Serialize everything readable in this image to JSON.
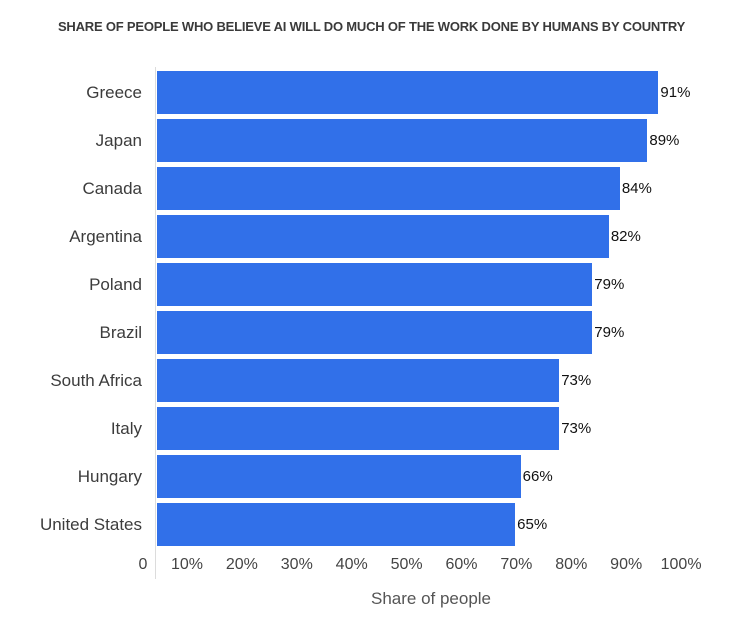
{
  "chart_data": {
    "type": "bar",
    "orientation": "horizontal",
    "title": "SHARE OF PEOPLE WHO BELIEVE AI WILL DO MUCH OF THE WORK DONE BY HUMANS BY COUNTRY",
    "xlabel": "Share of people",
    "ylabel": "",
    "categories": [
      "Greece",
      "Japan",
      "Canada",
      "Argentina",
      "Poland",
      "Brazil",
      "South Africa",
      "Italy",
      "Hungary",
      "United States"
    ],
    "values": [
      91,
      89,
      84,
      82,
      79,
      79,
      73,
      73,
      66,
      65
    ],
    "value_labels": [
      "91%",
      "89%",
      "84%",
      "82%",
      "79%",
      "79%",
      "73%",
      "73%",
      "66%",
      "65%"
    ],
    "x_ticks": [
      "0",
      "10%",
      "20%",
      "30%",
      "40%",
      "50%",
      "60%",
      "70%",
      "80%",
      "90%",
      "100%"
    ],
    "xlim": [
      0,
      100
    ],
    "grid": false,
    "legend": null,
    "bar_color": "#3170e9"
  }
}
